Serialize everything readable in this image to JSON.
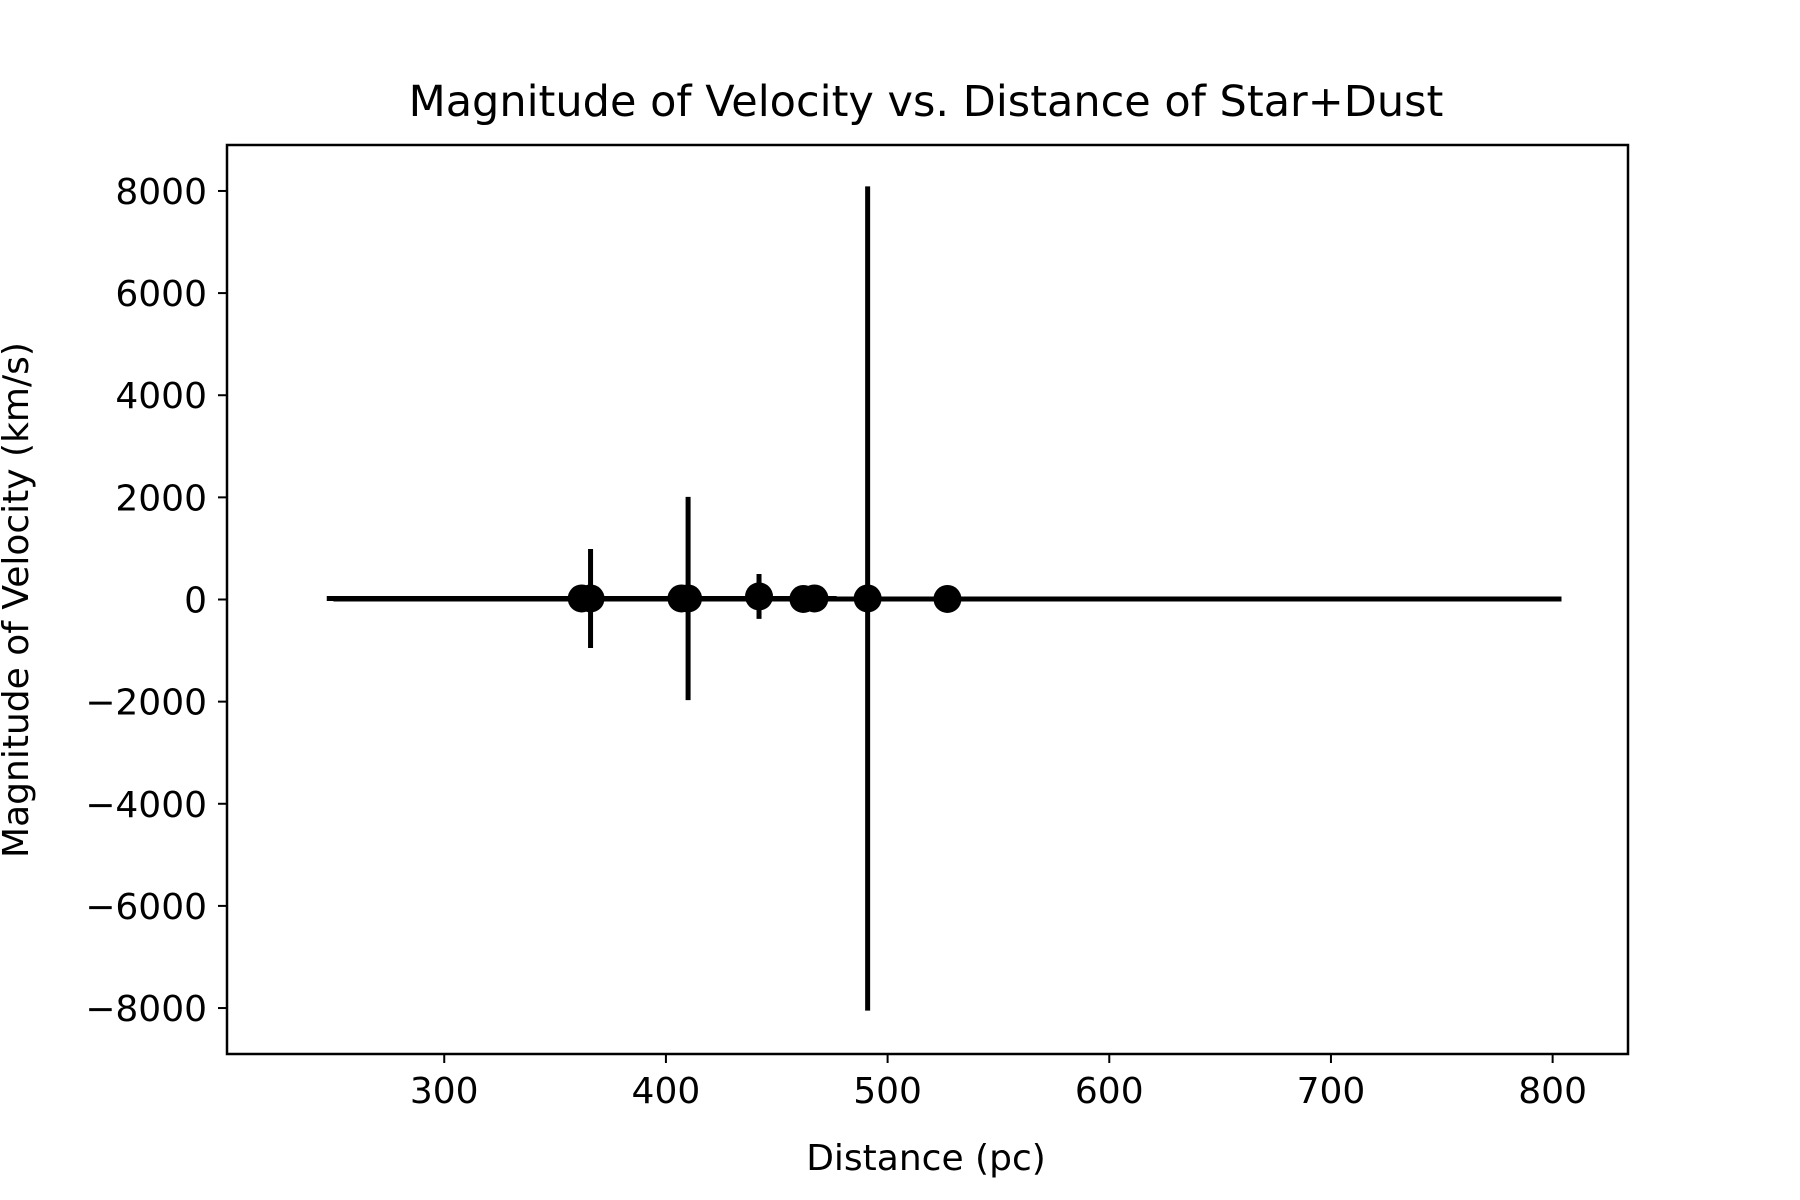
{
  "chart_data": {
    "type": "scatter",
    "title": "Magnitude of Velocity vs. Distance of Star+Dust",
    "xlabel": "Distance (pc)",
    "ylabel": "Magnitude of Velocity (km/s)",
    "xlim": [
      202,
      834
    ],
    "ylim": [
      -8900,
      8900
    ],
    "x_ticks": [
      300,
      400,
      500,
      600,
      700,
      800
    ],
    "y_ticks": [
      -8000,
      -6000,
      -4000,
      -2000,
      0,
      2000,
      4000,
      6000,
      8000
    ],
    "x_tick_labels": [
      "300",
      "400",
      "500",
      "600",
      "700",
      "800"
    ],
    "y_tick_labels": [
      "−8000",
      "−6000",
      "−4000",
      "−2000",
      "0",
      "2000",
      "4000",
      "6000",
      "8000"
    ],
    "grid": false,
    "legend": "none",
    "color": "#000000",
    "points": [
      {
        "x": 362,
        "y": 20,
        "xerr": 115,
        "yerr": 0
      },
      {
        "x": 366,
        "y": 20,
        "xerr": 0,
        "yerr": 970
      },
      {
        "x": 407,
        "y": 20,
        "xerr": 0,
        "yerr": 0
      },
      {
        "x": 410,
        "y": 20,
        "xerr": 0,
        "yerr": 1990
      },
      {
        "x": 442,
        "y": 60,
        "xerr": 0,
        "yerr": 440
      },
      {
        "x": 462,
        "y": 10,
        "xerr": 175,
        "yerr": 0
      },
      {
        "x": 467,
        "y": 20,
        "xerr": 0,
        "yerr": 0
      },
      {
        "x": 491,
        "y": 20,
        "xerr": 0,
        "yerr": 8070
      },
      {
        "x": 527,
        "y": 10,
        "xerr": 277,
        "yerr": 0
      }
    ]
  }
}
